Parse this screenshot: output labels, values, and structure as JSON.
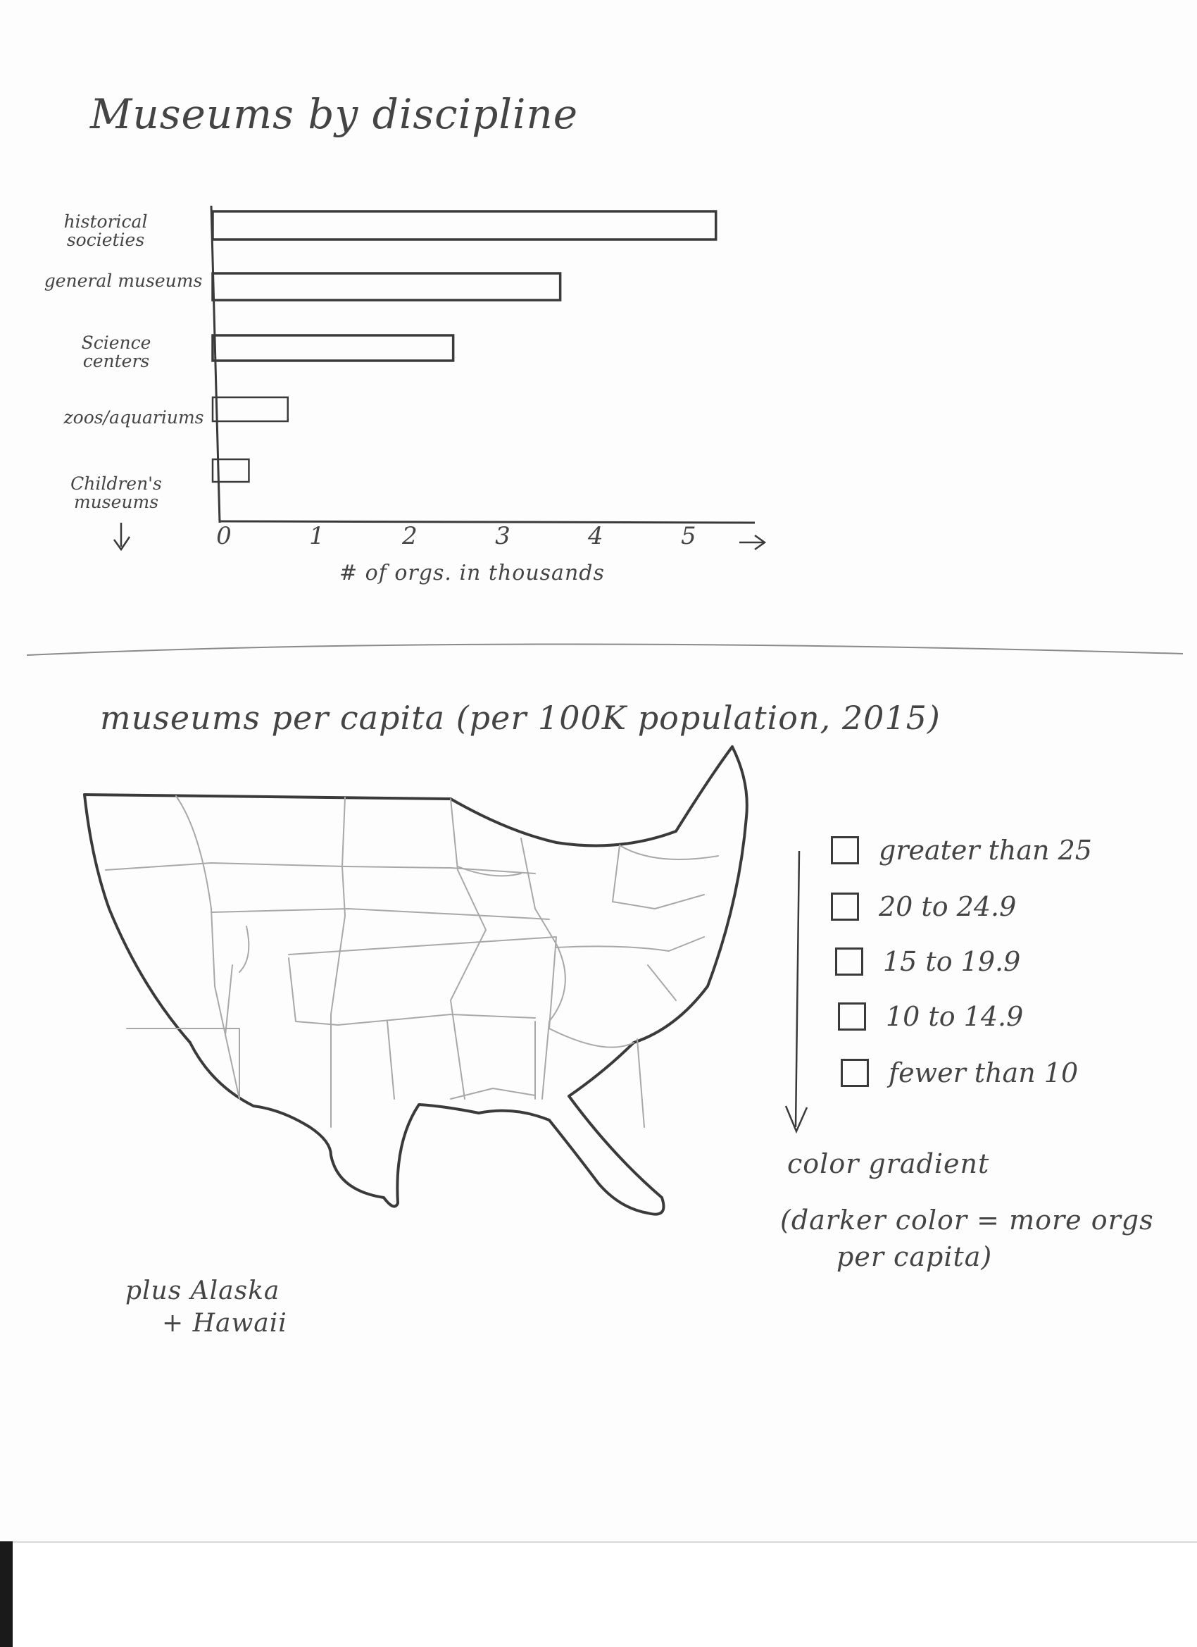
{
  "chart_data": [
    {
      "type": "bar",
      "orientation": "horizontal",
      "title": "Museums by discipline",
      "xlabel": "# of orgs. in thousands",
      "ylabel": "",
      "xlim": [
        0,
        5.5
      ],
      "categories": [
        "historical societies",
        "general museums",
        "Science centers",
        "zoos/aquariums",
        "Children's museums"
      ],
      "values": [
        5.1,
        3.5,
        2.4,
        0.7,
        0.3
      ],
      "x_ticks": [
        "0",
        "1",
        "2",
        "3",
        "4",
        "5"
      ],
      "grid": false
    },
    {
      "type": "choropleth-map",
      "title": "museums per capita (per 100K population, 2015)",
      "legend": {
        "items": [
          "greater than 25",
          "20 to 24.9",
          "15 to 19.9",
          "10 to 14.9",
          "fewer than 10"
        ],
        "note_line1": "color gradient",
        "note_line2": "(darker color = more orgs",
        "note_line3": "per capita)"
      },
      "footnote_line1": "plus Alaska",
      "footnote_line2": "+ Hawaii"
    }
  ],
  "colors": {
    "ink": "#3a3a3a",
    "pencil": "#9a9a9a",
    "paper": "#fdfdfd"
  }
}
